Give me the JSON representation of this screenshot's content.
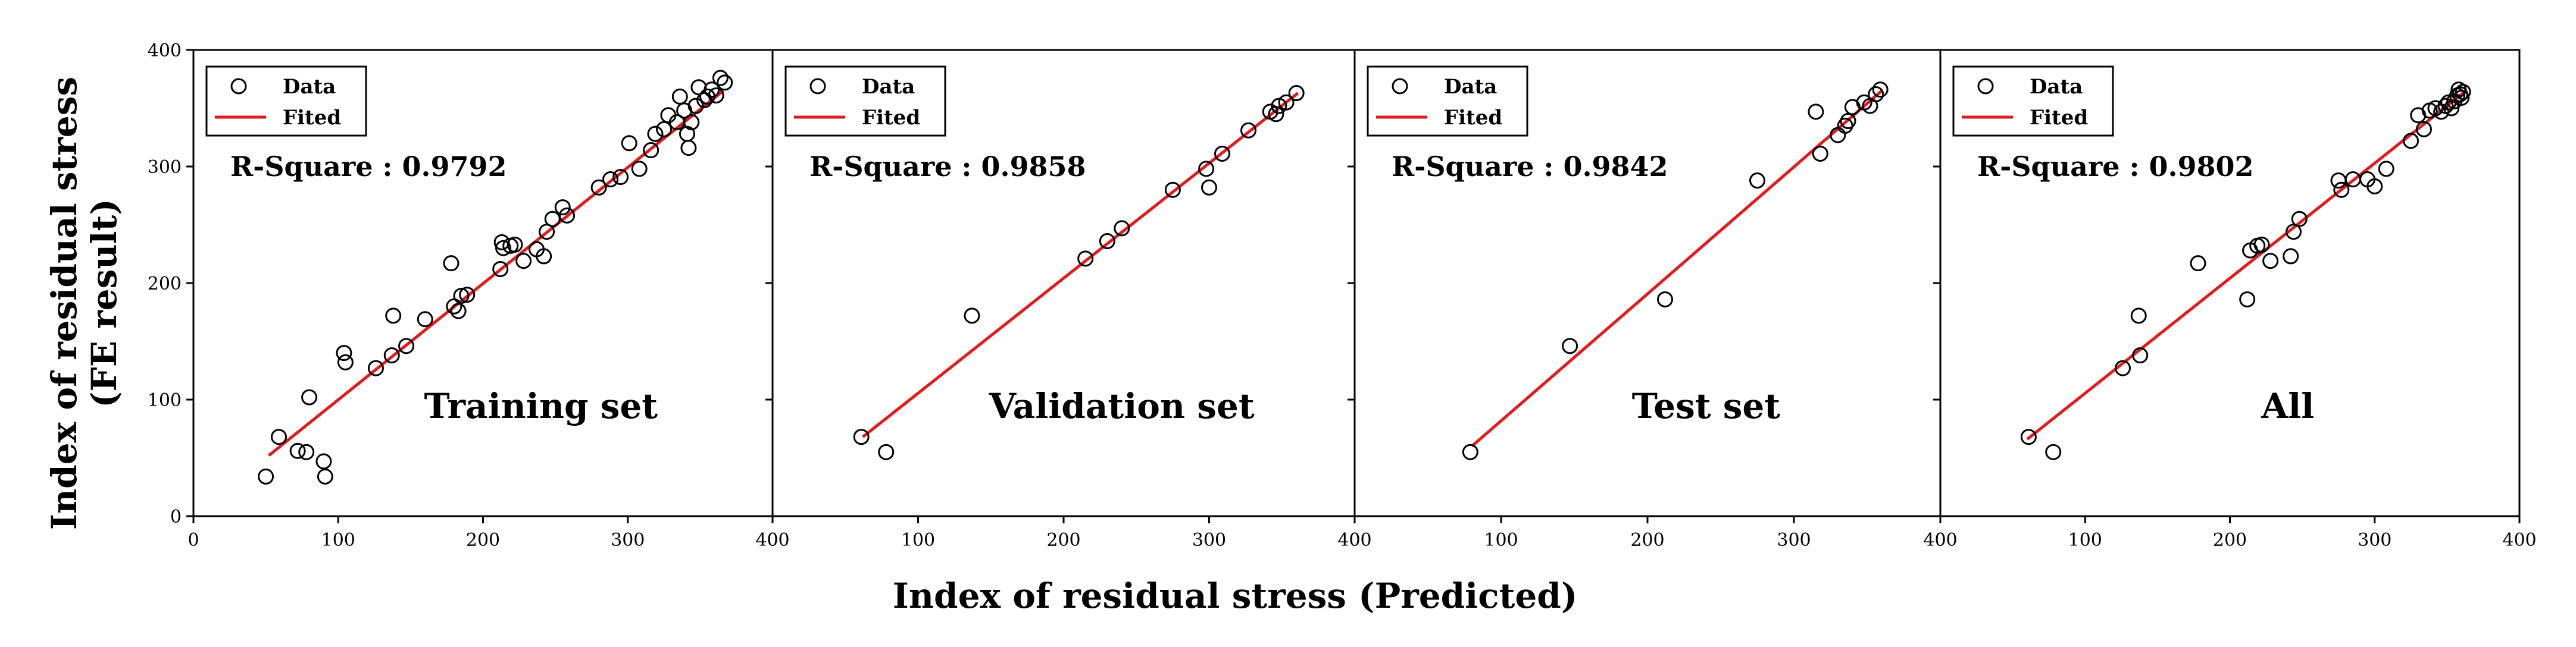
{
  "figure": {
    "ylabel_line1": "Index of residual stress",
    "ylabel_line2": "(FE result)",
    "xlabel": "Index of residual stress (Predicted)"
  },
  "chart_data": [
    {
      "type": "scatter",
      "panel_label": "Training set",
      "r_square_text": "R-Square : 0.9792",
      "legend": {
        "data": "Data",
        "fit": "Fited",
        "position": "top-left"
      },
      "xlim": [
        0,
        400
      ],
      "ylim": [
        0,
        400
      ],
      "xticks": [
        "0",
        "100",
        "200",
        "300",
        "400"
      ],
      "yticks": [
        "0",
        "100",
        "200",
        "300",
        "400"
      ],
      "fit_line": {
        "x": [
          52,
          366
        ],
        "y": [
          52,
          365
        ]
      },
      "colors": {
        "fit": "#e31a1c",
        "marker": "#000000"
      },
      "points": [
        [
          50,
          34
        ],
        [
          59,
          68
        ],
        [
          72,
          56
        ],
        [
          78,
          55
        ],
        [
          80,
          102
        ],
        [
          90,
          47
        ],
        [
          91,
          34
        ],
        [
          104,
          140
        ],
        [
          105,
          132
        ],
        [
          126,
          127
        ],
        [
          137,
          138
        ],
        [
          138,
          172
        ],
        [
          147,
          146
        ],
        [
          160,
          169
        ],
        [
          178,
          217
        ],
        [
          180,
          180
        ],
        [
          183,
          176
        ],
        [
          185,
          189
        ],
        [
          189,
          190
        ],
        [
          212,
          212
        ],
        [
          213,
          235
        ],
        [
          214,
          230
        ],
        [
          219,
          232
        ],
        [
          222,
          233
        ],
        [
          228,
          219
        ],
        [
          237,
          229
        ],
        [
          242,
          223
        ],
        [
          244,
          244
        ],
        [
          248,
          255
        ],
        [
          255,
          265
        ],
        [
          258,
          258
        ],
        [
          280,
          282
        ],
        [
          288,
          289
        ],
        [
          295,
          291
        ],
        [
          301,
          320
        ],
        [
          308,
          298
        ],
        [
          316,
          314
        ],
        [
          319,
          328
        ],
        [
          325,
          332
        ],
        [
          328,
          344
        ],
        [
          334,
          338
        ],
        [
          336,
          360
        ],
        [
          339,
          348
        ],
        [
          341,
          328
        ],
        [
          342,
          316
        ],
        [
          344,
          338
        ],
        [
          347,
          352
        ],
        [
          349,
          368
        ],
        [
          353,
          357
        ],
        [
          355,
          360
        ],
        [
          358,
          366
        ],
        [
          361,
          361
        ],
        [
          364,
          376
        ],
        [
          367,
          372
        ]
      ]
    },
    {
      "type": "scatter",
      "panel_label": "Validation set",
      "r_square_text": "R-Square : 0.9858",
      "legend": {
        "data": "Data",
        "fit": "Fited",
        "position": "top-left"
      },
      "xlim": [
        0,
        400
      ],
      "ylim": [
        0,
        400
      ],
      "xticks": [
        "0",
        "100",
        "200",
        "300",
        "400"
      ],
      "yticks": [
        "0",
        "100",
        "200",
        "300",
        "400"
      ],
      "fit_line": {
        "x": [
          62,
          361
        ],
        "y": [
          68,
          363
        ]
      },
      "colors": {
        "fit": "#e31a1c",
        "marker": "#000000"
      },
      "points": [
        [
          61,
          68
        ],
        [
          78,
          55
        ],
        [
          137,
          172
        ],
        [
          215,
          221
        ],
        [
          230,
          236
        ],
        [
          240,
          247
        ],
        [
          275,
          280
        ],
        [
          298,
          298
        ],
        [
          300,
          282
        ],
        [
          309,
          311
        ],
        [
          327,
          331
        ],
        [
          342,
          347
        ],
        [
          346,
          345
        ],
        [
          348,
          352
        ],
        [
          353,
          355
        ],
        [
          360,
          363
        ]
      ]
    },
    {
      "type": "scatter",
      "panel_label": "Test set",
      "r_square_text": "R-Square : 0.9842",
      "legend": {
        "data": "Data",
        "fit": "Fited",
        "position": "top-left"
      },
      "xlim": [
        0,
        400
      ],
      "ylim": [
        0,
        400
      ],
      "xticks": [
        "0",
        "100",
        "200",
        "300",
        "400"
      ],
      "yticks": [
        "0",
        "100",
        "200",
        "300",
        "400"
      ],
      "fit_line": {
        "x": [
          80,
          360
        ],
        "y": [
          60,
          365
        ]
      },
      "colors": {
        "fit": "#e31a1c",
        "marker": "#000000"
      },
      "points": [
        [
          79,
          55
        ],
        [
          147,
          146
        ],
        [
          212,
          186
        ],
        [
          275,
          288
        ],
        [
          315,
          347
        ],
        [
          318,
          311
        ],
        [
          330,
          327
        ],
        [
          335,
          335
        ],
        [
          337,
          339
        ],
        [
          340,
          351
        ],
        [
          348,
          355
        ],
        [
          352,
          352
        ],
        [
          356,
          362
        ],
        [
          359,
          366
        ]
      ]
    },
    {
      "type": "scatter",
      "panel_label": "All",
      "r_square_text": "R-Square : 0.9802",
      "legend": {
        "data": "Data",
        "fit": "Fited",
        "position": "top-left"
      },
      "xlim": [
        0,
        400
      ],
      "ylim": [
        0,
        400
      ],
      "xticks": [
        "0",
        "100",
        "200",
        "300",
        "400"
      ],
      "yticks": [
        "0",
        "100",
        "200",
        "300",
        "400"
      ],
      "fit_line": {
        "x": [
          60,
          362
        ],
        "y": [
          66,
          364
        ]
      },
      "colors": {
        "fit": "#e31a1c",
        "marker": "#000000"
      },
      "points": [
        [
          61,
          68
        ],
        [
          78,
          55
        ],
        [
          126,
          127
        ],
        [
          137,
          172
        ],
        [
          138,
          138
        ],
        [
          178,
          217
        ],
        [
          212,
          186
        ],
        [
          214,
          228
        ],
        [
          219,
          232
        ],
        [
          222,
          233
        ],
        [
          228,
          219
        ],
        [
          242,
          223
        ],
        [
          244,
          244
        ],
        [
          248,
          255
        ],
        [
          275,
          288
        ],
        [
          277,
          280
        ],
        [
          285,
          289
        ],
        [
          295,
          289
        ],
        [
          300,
          283
        ],
        [
          308,
          298
        ],
        [
          325,
          322
        ],
        [
          330,
          344
        ],
        [
          334,
          332
        ],
        [
          338,
          348
        ],
        [
          342,
          350
        ],
        [
          346,
          347
        ],
        [
          349,
          352
        ],
        [
          351,
          355
        ],
        [
          353,
          350
        ],
        [
          355,
          356
        ],
        [
          357,
          361
        ],
        [
          358,
          366
        ],
        [
          359,
          362
        ],
        [
          360,
          359
        ],
        [
          361,
          364
        ]
      ]
    }
  ]
}
